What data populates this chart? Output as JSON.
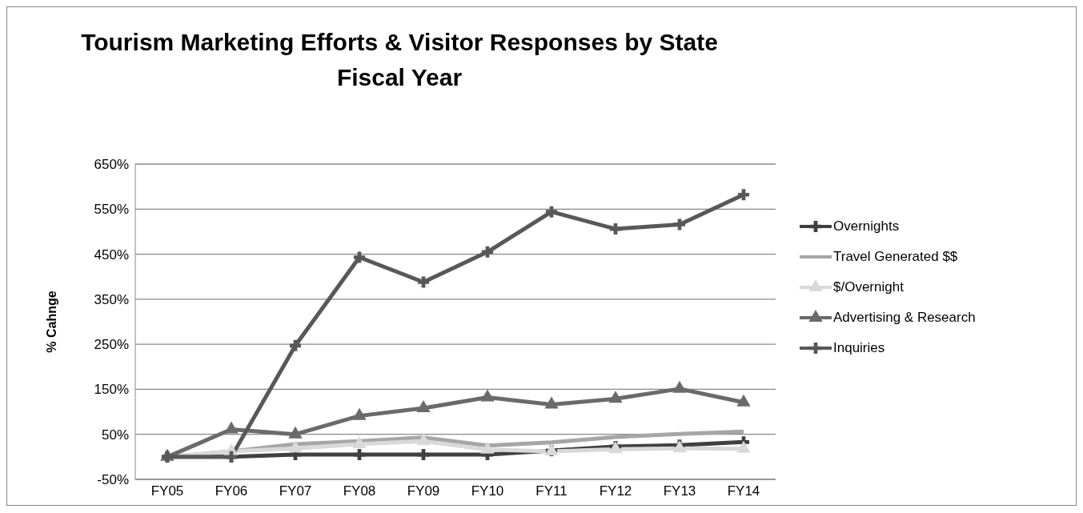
{
  "chart_data": {
    "type": "line",
    "title": "Tourism Marketing Efforts & Visitor Responses by State Fiscal Year",
    "ylabel": "% Cahnge",
    "categories": [
      "FY05",
      "FY06",
      "FY07",
      "FY08",
      "FY09",
      "FY10",
      "FY11",
      "FY12",
      "FY13",
      "FY14"
    ],
    "series": [
      {
        "name": "Overnights",
        "color": "#404040",
        "marker": "cross",
        "values": [
          0,
          0,
          5,
          5,
          5,
          5,
          14,
          23,
          26,
          33
        ]
      },
      {
        "name": "Travel Generated $$",
        "color": "#a6a6a6",
        "marker": "none",
        "values": [
          0,
          12,
          28,
          35,
          43,
          25,
          32,
          44,
          51,
          56
        ]
      },
      {
        "name": "$/Overnight",
        "color": "#d9d9d9",
        "marker": "triangle",
        "values": [
          0,
          12,
          19,
          28,
          35,
          16,
          12,
          17,
          19,
          18
        ]
      },
      {
        "name": "Advertising & Research",
        "color": "#6a6a6a",
        "marker": "triangle",
        "values": [
          0,
          61,
          50,
          91,
          108,
          132,
          116,
          129,
          151,
          121
        ]
      },
      {
        "name": "Inquiries",
        "color": "#585858",
        "marker": "cross",
        "values": [
          0,
          0,
          247,
          443,
          388,
          455,
          544,
          506,
          516,
          582
        ]
      }
    ],
    "ylim": [
      -50,
      650
    ],
    "yticks": [
      {
        "value": -50,
        "label": "-50%"
      },
      {
        "value": 50,
        "label": "50%"
      },
      {
        "value": 150,
        "label": "150%"
      },
      {
        "value": 250,
        "label": "250%"
      },
      {
        "value": 350,
        "label": "350%"
      },
      {
        "value": 450,
        "label": "450%"
      },
      {
        "value": 550,
        "label": "550%"
      },
      {
        "value": 650,
        "label": "650%"
      }
    ],
    "grid": "y",
    "legend": "right",
    "line_style": "solid"
  }
}
